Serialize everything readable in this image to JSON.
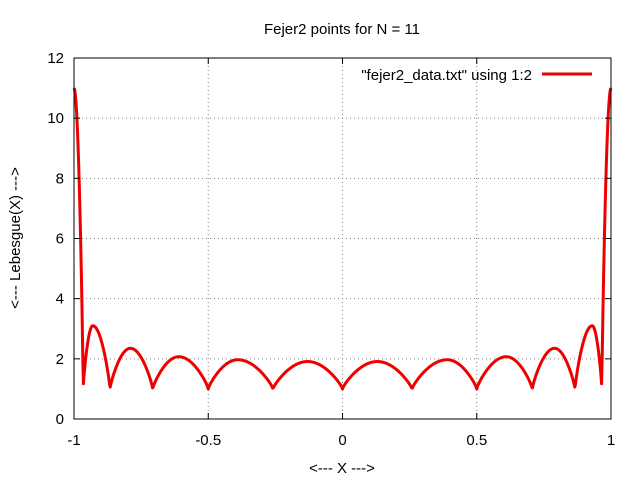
{
  "chart_data": {
    "type": "line",
    "title": "Fejer2 points for N = 11",
    "xlabel": "<--- X --->",
    "ylabel": "<--- Lebesgue(X) --->",
    "xlim": [
      -1,
      1
    ],
    "ylim": [
      0,
      12
    ],
    "x_ticks": [
      -1,
      -0.5,
      0,
      0.5,
      1
    ],
    "x_tick_labels": [
      "-1",
      "-0.5",
      "0",
      "0.5",
      "1"
    ],
    "y_ticks": [
      0,
      2,
      4,
      6,
      8,
      10,
      12
    ],
    "y_tick_labels": [
      "0",
      "2",
      "4",
      "6",
      "8",
      "10",
      "12"
    ],
    "grid": true,
    "legend_position": "top-right",
    "series": [
      {
        "name": "\"fejer2_data.txt\" using 1:2",
        "color": "#ee0000",
        "nodes": [
          -0.966,
          -0.866,
          -0.707,
          -0.5,
          -0.259,
          0,
          0.259,
          0.5,
          0.707,
          0.866,
          0.966
        ],
        "x": [
          -1,
          -0.966,
          -0.93,
          -0.866,
          -0.79,
          -0.707,
          -0.61,
          -0.5,
          -0.39,
          -0.259,
          -0.13,
          0,
          0.13,
          0.259,
          0.39,
          0.5,
          0.61,
          0.707,
          0.79,
          0.866,
          0.93,
          0.966,
          1
        ],
        "y": [
          11,
          1.0,
          3.1,
          1.0,
          2.35,
          1.0,
          2.07,
          1.0,
          1.97,
          1.0,
          1.91,
          1.0,
          1.91,
          1.0,
          1.97,
          1.0,
          2.07,
          1.0,
          2.35,
          1.0,
          3.1,
          1.0,
          11
        ]
      }
    ]
  }
}
